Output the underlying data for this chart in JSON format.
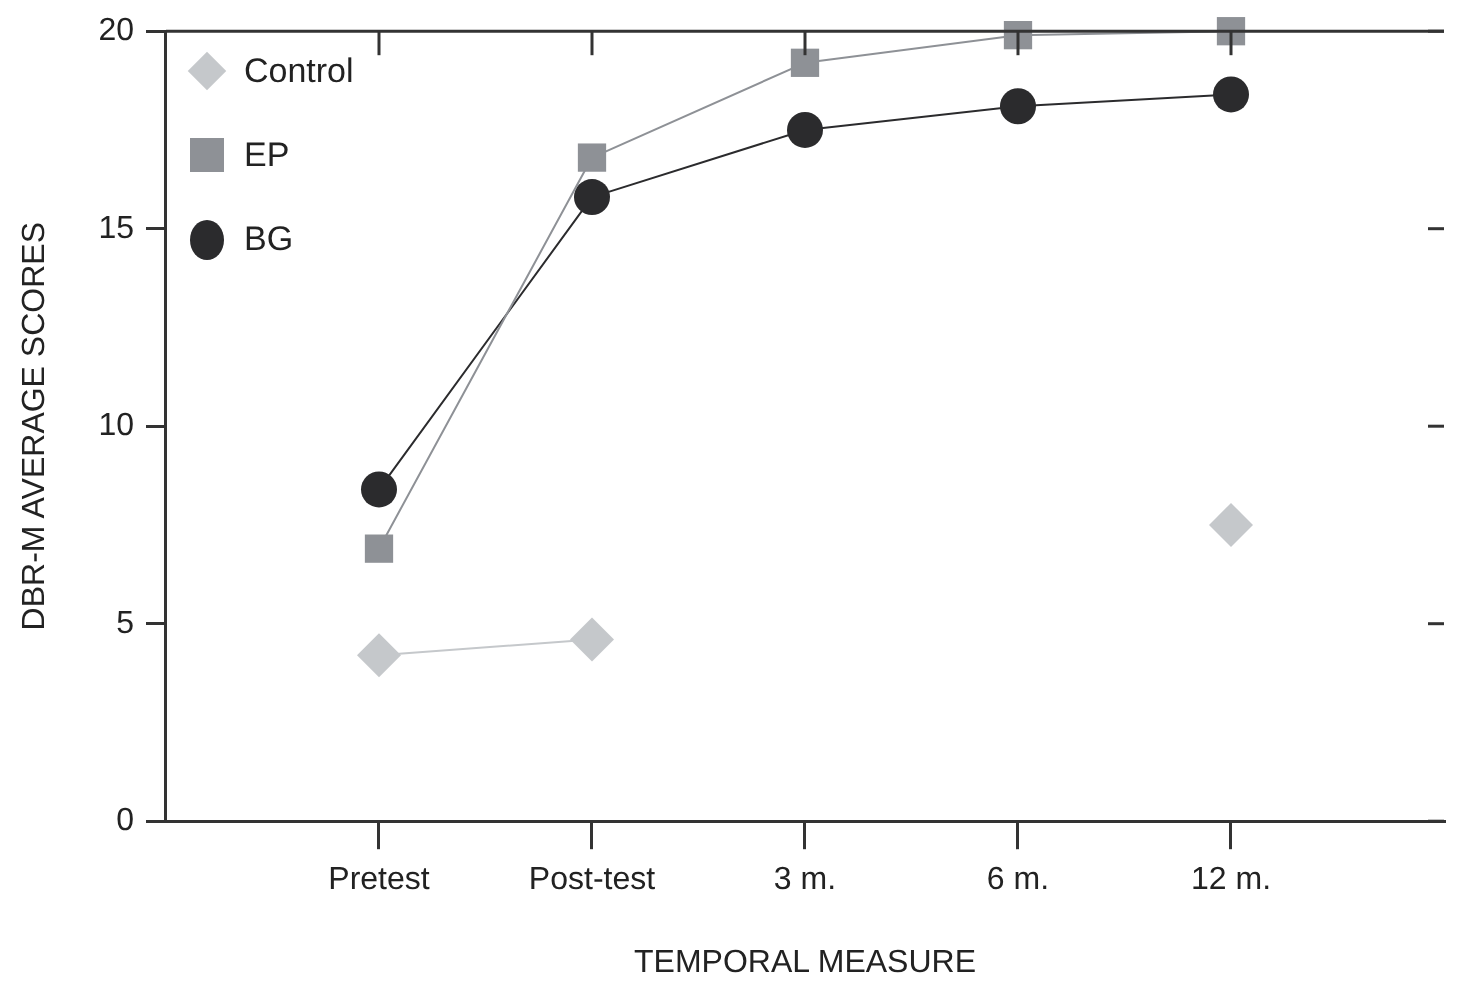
{
  "chart_data": {
    "type": "line",
    "xlabel": "TEMPORAL MEASURE",
    "ylabel": "DBR-M AVERAGE SCORES",
    "categories": [
      "Pretest",
      "Post-test",
      "3 m.",
      "6 m.",
      "12 m."
    ],
    "series": [
      {
        "name": "Control",
        "color": "#c5c8cb",
        "marker": "diamond",
        "values": [
          4.2,
          4.6,
          null,
          null,
          7.5
        ]
      },
      {
        "name": "EP",
        "color": "#8e9196",
        "marker": "square",
        "values": [
          6.9,
          16.8,
          19.2,
          19.9,
          20.0
        ]
      },
      {
        "name": "BG",
        "color": "#2b2b2d",
        "marker": "circle",
        "values": [
          8.4,
          15.8,
          17.5,
          18.1,
          18.4
        ]
      }
    ],
    "ylim": [
      0,
      20
    ],
    "yticks": [
      0,
      5,
      10,
      15,
      20
    ],
    "grid": false,
    "legend": "top left"
  }
}
